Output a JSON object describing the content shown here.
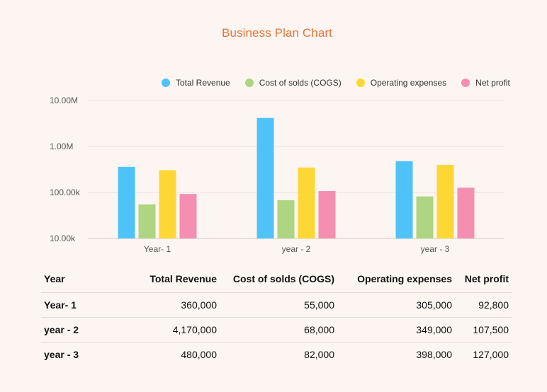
{
  "chart_data": {
    "type": "bar",
    "title": "Business Plan Chart",
    "categories": [
      "Year- 1",
      "year - 2",
      "year - 3"
    ],
    "series": [
      {
        "name": "Total Revenue",
        "color": "#4fc3f7",
        "values": [
          360000,
          4170000,
          480000
        ]
      },
      {
        "name": "Cost of solds (COGS)",
        "color": "#aed581",
        "values": [
          55000,
          68000,
          82000
        ]
      },
      {
        "name": "Operating expenses",
        "color": "#fdd835",
        "values": [
          305000,
          349000,
          398000
        ]
      },
      {
        "name": "Net profit",
        "color": "#f48fb1",
        "values": [
          92800,
          107500,
          127000
        ]
      }
    ],
    "yscale": "log",
    "ylim": [
      10000,
      10000000
    ],
    "yticks": [
      {
        "value": 10000000,
        "label": "10.00M"
      },
      {
        "value": 1000000,
        "label": "1.00M"
      },
      {
        "value": 100000,
        "label": "100.00k"
      },
      {
        "value": 10000,
        "label": "10.00k"
      }
    ],
    "grid": true,
    "legend_position": "top-right"
  },
  "table": {
    "headers": [
      "Year",
      "Total Revenue",
      "Cost of solds (COGS)",
      "Operating expenses",
      "Net profit"
    ],
    "rows": [
      [
        "Year- 1",
        "360,000",
        "55,000",
        "305,000",
        "92,800"
      ],
      [
        "year - 2",
        "4,170,000",
        "68,000",
        "349,000",
        "107,500"
      ],
      [
        "year - 3",
        "480,000",
        "82,000",
        "398,000",
        "127,000"
      ]
    ]
  }
}
